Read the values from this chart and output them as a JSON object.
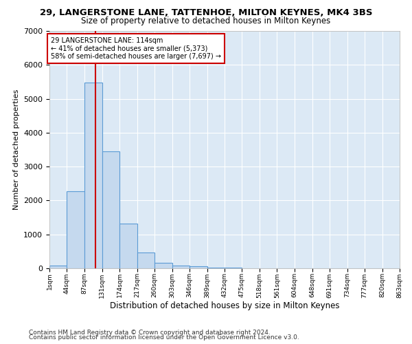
{
  "title1": "29, LANGERSTONE LANE, TATTENHOE, MILTON KEYNES, MK4 3BS",
  "title2": "Size of property relative to detached houses in Milton Keynes",
  "xlabel": "Distribution of detached houses by size in Milton Keynes",
  "ylabel": "Number of detached properties",
  "bin_edges": [
    1,
    44,
    87,
    131,
    174,
    217,
    260,
    303,
    346,
    389,
    432,
    475,
    518,
    561,
    604,
    648,
    691,
    734,
    777,
    820,
    863
  ],
  "bar_values": [
    75,
    2270,
    5470,
    3450,
    1310,
    470,
    160,
    90,
    55,
    30,
    15,
    8,
    5,
    3,
    2,
    2,
    1,
    1,
    1,
    1
  ],
  "bar_color": "#c5d9ee",
  "bar_edge_color": "#5b9bd5",
  "property_size": 114,
  "vline_color": "#cc0000",
  "annotation_text": "29 LANGERSTONE LANE: 114sqm\n← 41% of detached houses are smaller (5,373)\n58% of semi-detached houses are larger (7,697) →",
  "annotation_box_facecolor": "#ffffff",
  "annotation_box_edgecolor": "#cc0000",
  "ylim": [
    0,
    7000
  ],
  "plot_bg_color": "#dce9f5",
  "fig_bg_color": "#ffffff",
  "grid_color": "#ffffff",
  "footer1": "Contains HM Land Registry data © Crown copyright and database right 2024.",
  "footer2": "Contains public sector information licensed under the Open Government Licence v3.0."
}
